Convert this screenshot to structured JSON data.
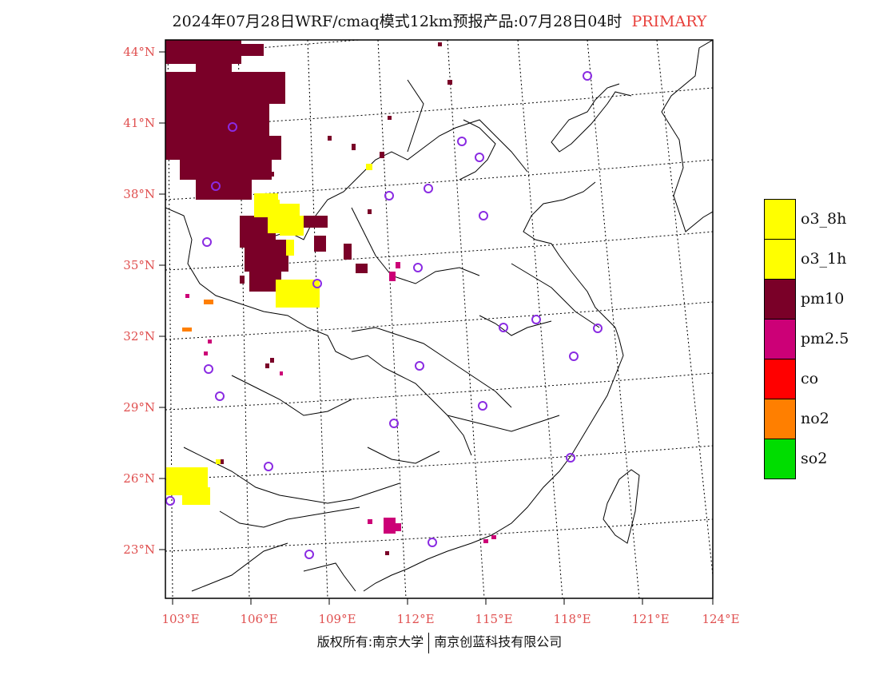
{
  "title": {
    "text": "2024年07月28日WRF/cmaq模式12km预报产品:07月28日04时",
    "tag": "PRIMARY"
  },
  "axes": {
    "lat_labels": [
      "44°N",
      "41°N",
      "38°N",
      "35°N",
      "32°N",
      "29°N",
      "26°N",
      "23°N"
    ],
    "lon_labels": [
      "103°E",
      "106°E",
      "109°E",
      "112°E",
      "115°E",
      "118°E",
      "121°E",
      "124°E"
    ]
  },
  "legend": {
    "items": [
      {
        "label": "o3_8h",
        "color": "#ffff00"
      },
      {
        "label": "o3_1h",
        "color": "#ffff00"
      },
      {
        "label": "pm10",
        "color": "#7a0028"
      },
      {
        "label": "pm2.5",
        "color": "#cc0077"
      },
      {
        "label": "co",
        "color": "#ff0000"
      },
      {
        "label": "no2",
        "color": "#ff7f00"
      },
      {
        "label": "so2",
        "color": "#00dd00"
      }
    ]
  },
  "copyright": {
    "left": "版权所有:南京大学",
    "right": "南京创蓝科技有限公司"
  },
  "colors": {
    "primary_tag": "#e8413c",
    "axis_label": "#e05050",
    "city_marker": "#8a2be2"
  }
}
